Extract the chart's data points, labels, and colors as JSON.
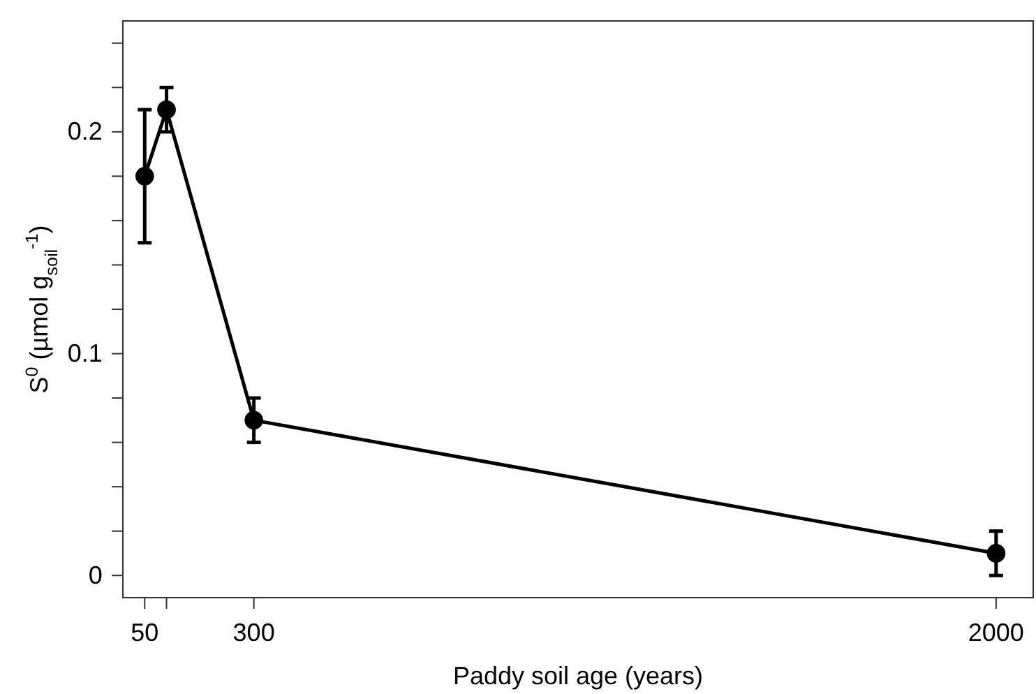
{
  "chart_data": {
    "type": "line",
    "xlabel": "Paddy soil age (years)",
    "ylabel": "S$^{0}$ (µmol g$_{soil}$$^{-1}$)",
    "x": [
      50,
      100,
      300,
      2000
    ],
    "series": [
      {
        "color": "#000000",
        "values": [
          0.18,
          0.21,
          0.07,
          0.01
        ],
        "errors": [
          0.03,
          0.01,
          0.01,
          0.01
        ]
      }
    ],
    "xlim": [
      0,
      2085
    ],
    "xticks": [
      50,
      {
        "value": 100,
        "label": null
      },
      300,
      2000
    ],
    "ylim": [
      -0.01,
      0.25
    ],
    "yticks": [
      0,
      {
        "value": 0.02,
        "label": null
      },
      {
        "value": 0.04,
        "label": null
      },
      {
        "value": 0.06,
        "label": null
      },
      {
        "value": 0.08,
        "label": null
      },
      0.1,
      {
        "value": 0.12,
        "label": null
      },
      {
        "value": 0.14,
        "label": null
      },
      {
        "value": 0.16,
        "label": null
      },
      {
        "value": 0.18,
        "label": null
      },
      0.2,
      {
        "value": 0.22,
        "label": null
      },
      {
        "value": 0.24,
        "label": null
      }
    ],
    "grid": false,
    "marker": "circle",
    "line_style": "solid"
  }
}
